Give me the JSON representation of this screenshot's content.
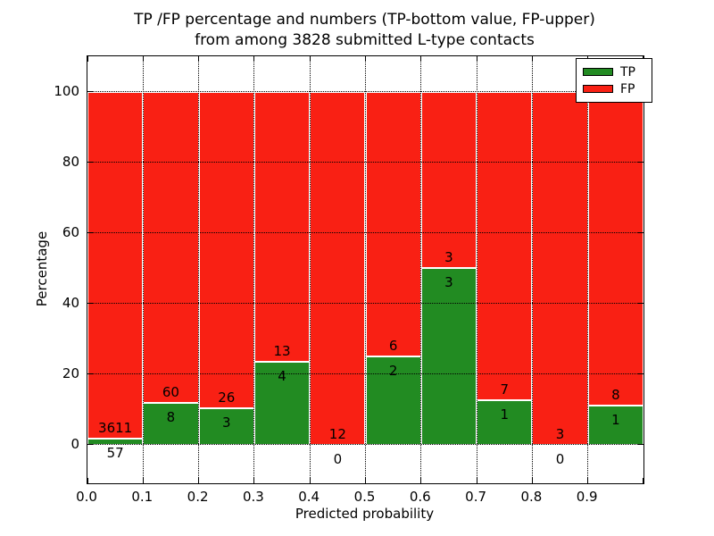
{
  "title": {
    "line1": "TP /FP percentage and numbers (TP-bottom value, FP-upper)",
    "line2": "from among 3828 submitted L-type contacts"
  },
  "axes": {
    "xlabel": "Predicted probability",
    "ylabel": "Percentage"
  },
  "colors": {
    "tp": "#228b22",
    "fp": "#f92014",
    "grid": "#000000",
    "background": "#ffffff"
  },
  "legend": {
    "position": "upper right",
    "entries": [
      {
        "label": "TP",
        "color_key": "tp"
      },
      {
        "label": "FP",
        "color_key": "fp"
      }
    ]
  },
  "chart_data": {
    "type": "bar",
    "stacked": true,
    "title": "TP /FP percentage and numbers (TP-bottom value, FP-upper) from among 3828 submitted L-type contacts",
    "xlabel": "Predicted probability",
    "ylabel": "Percentage",
    "total_contacts": 3828,
    "categories": [
      "0.0-0.1",
      "0.1-0.2",
      "0.2-0.3",
      "0.3-0.4",
      "0.4-0.5",
      "0.5-0.6",
      "0.6-0.7",
      "0.7-0.8",
      "0.8-0.9",
      "0.9-1.0"
    ],
    "series": [
      {
        "name": "TP",
        "counts": [
          57,
          8,
          3,
          4,
          0,
          2,
          3,
          1,
          0,
          1
        ]
      },
      {
        "name": "FP",
        "counts": [
          3611,
          60,
          26,
          13,
          12,
          6,
          3,
          7,
          3,
          8
        ]
      }
    ],
    "bar_heights_note": "green bar height = tp/(tp+fp)*100, red fills up to 100",
    "tp_percentages": [
      1.55,
      11.76,
      10.34,
      23.53,
      0.0,
      25.0,
      50.0,
      12.5,
      0.0,
      11.11
    ],
    "x_tick_labels": [
      "0.0",
      "0.1",
      "0.2",
      "0.3",
      "0.4",
      "0.5",
      "0.6",
      "0.7",
      "0.8",
      "0.9"
    ],
    "y_ticks": [
      0,
      20,
      40,
      60,
      80,
      100
    ],
    "xlim": [
      0.0,
      1.0
    ],
    "ylim": [
      -11,
      110
    ],
    "grid": "dotted black at x every 0.1 and y every 20",
    "legend_position": "upper right"
  }
}
